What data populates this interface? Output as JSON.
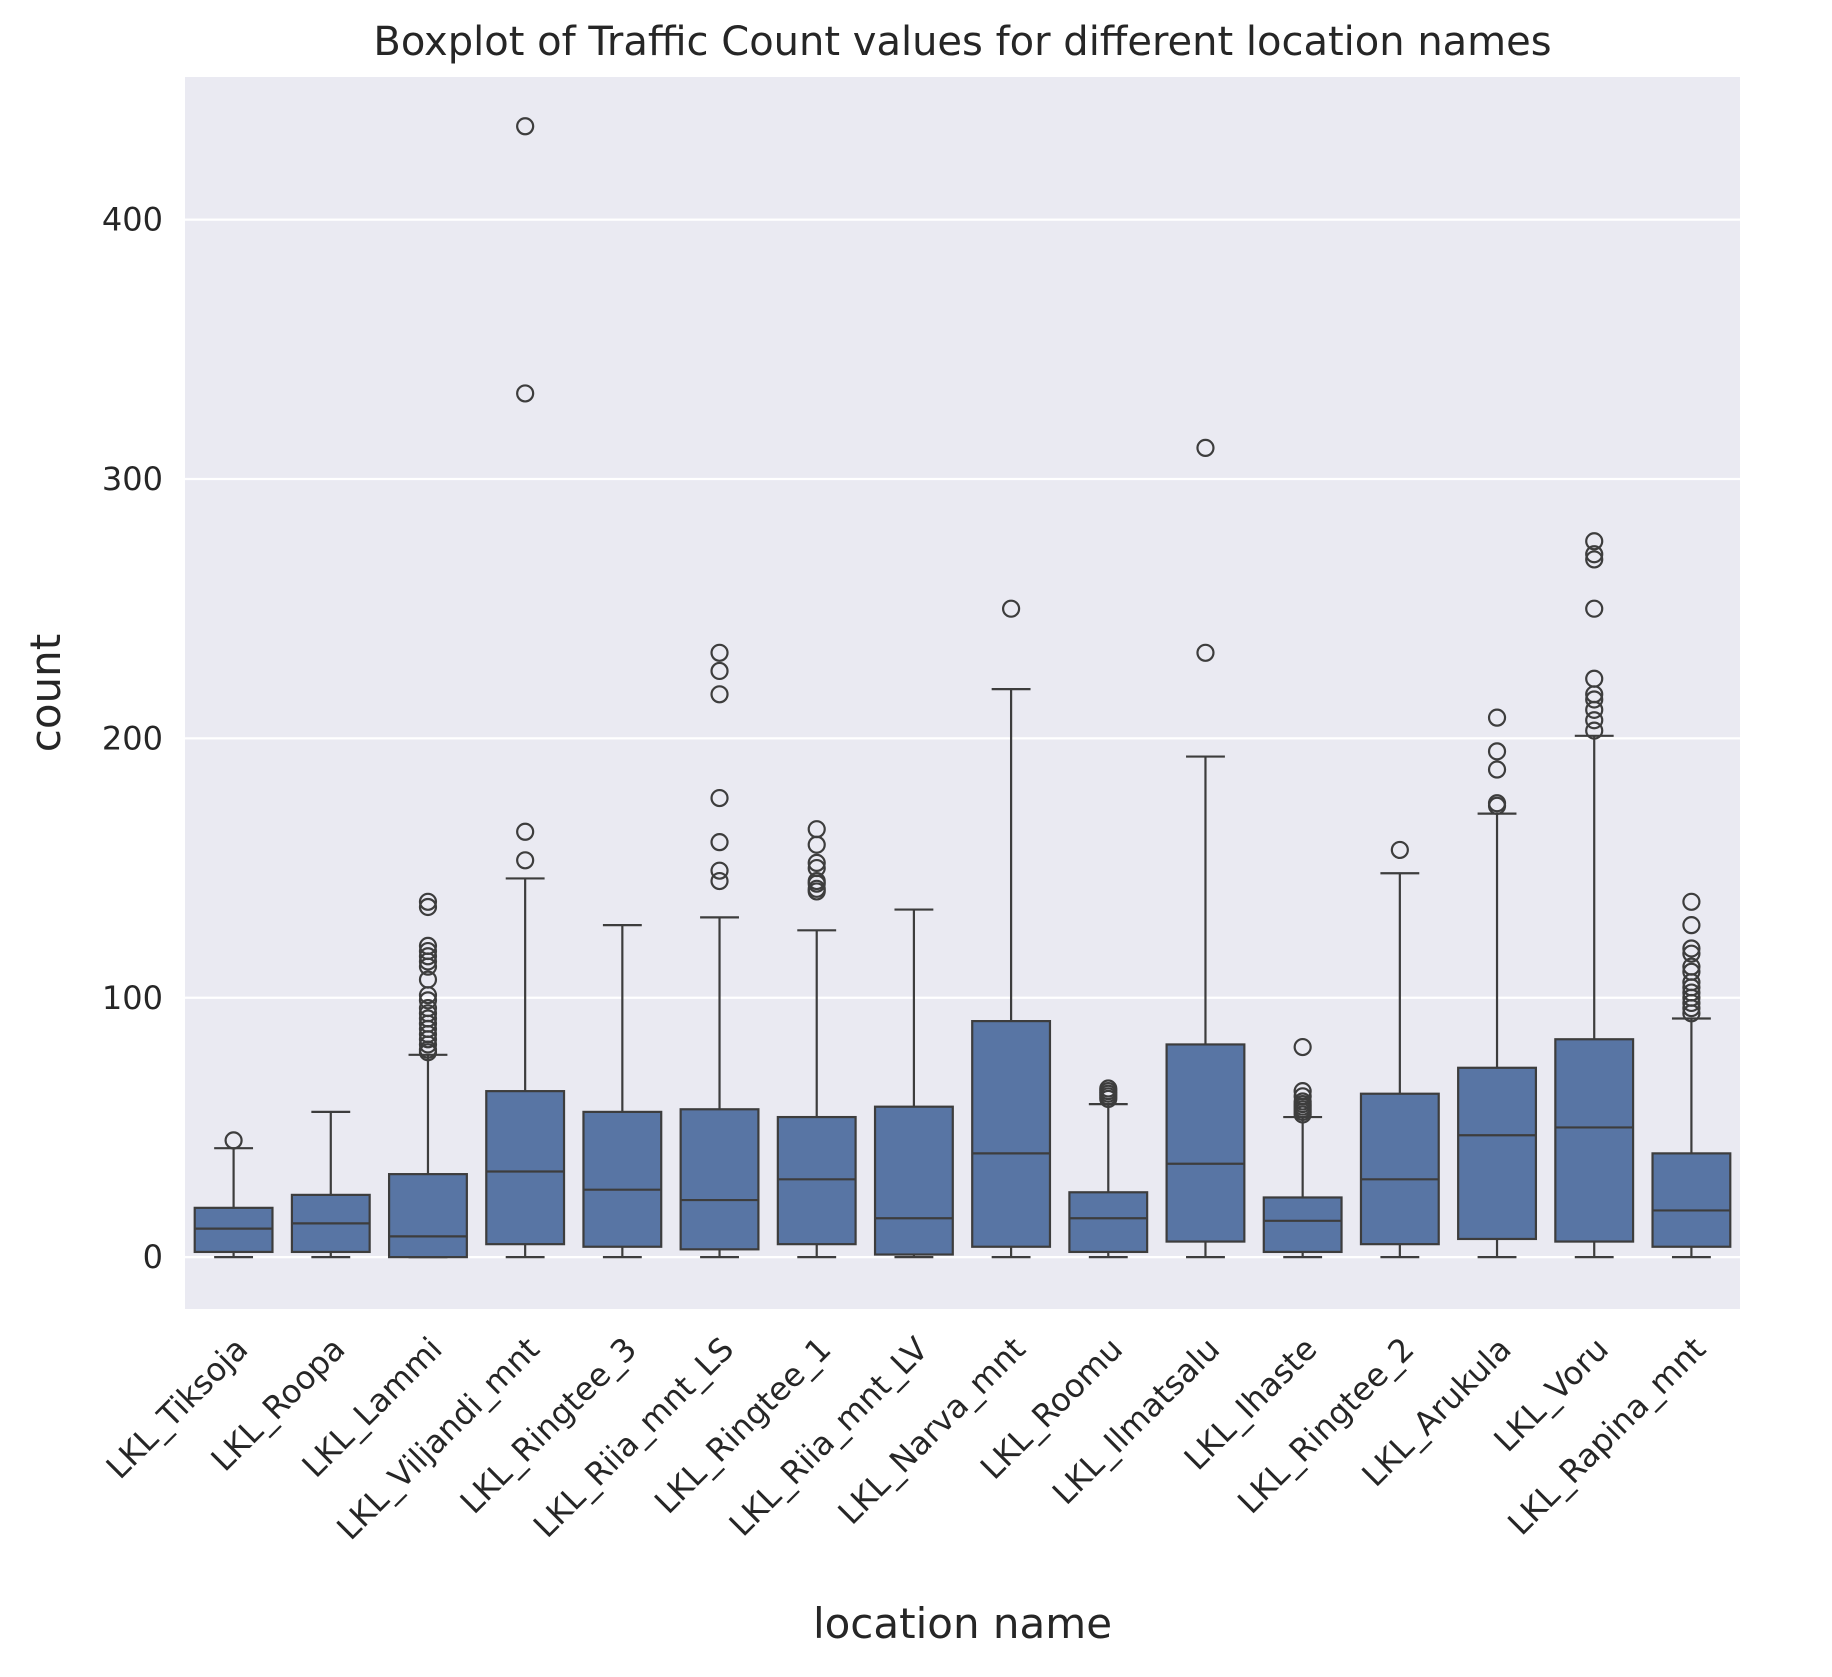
{
  "chart_data": {
    "type": "boxplot",
    "title": "Boxplot of Traffic Count values for different location names",
    "xlabel": "location name",
    "ylabel": "count",
    "ylim": [
      -20,
      455
    ],
    "yticks": [
      0,
      100,
      200,
      300,
      400
    ],
    "grid": true,
    "colors": {
      "box": "#5875a4",
      "line": "#3d3d3d",
      "plot_bg": "#eaeaf2",
      "grid": "#ffffff"
    },
    "categories": [
      "LKL_Tiksoja",
      "LKL_Roopa",
      "LKL_Lammi",
      "LKL_Viljandi_mnt",
      "LKL_Ringtee_3",
      "LKL_Riia_mnt_LS",
      "LKL_Ringtee_1",
      "LKL_Riia_mnt_LV",
      "LKL_Narva_mnt",
      "LKL_Roomu",
      "LKL_Ilmatsalu",
      "LKL_Ihaste",
      "LKL_Ringtee_2",
      "LKL_Arukula",
      "LKL_Voru",
      "LKL_Rapina_mnt"
    ],
    "boxes": [
      {
        "whislo": 0,
        "q1": 2,
        "med": 11,
        "q3": 19,
        "whishi": 42,
        "fliers": [
          45
        ]
      },
      {
        "whislo": 0,
        "q1": 2,
        "med": 13,
        "q3": 24,
        "whishi": 56,
        "fliers": []
      },
      {
        "whislo": 0,
        "q1": 0,
        "med": 8,
        "q3": 32,
        "whishi": 78,
        "fliers": [
          79,
          80,
          82,
          84,
          86,
          88,
          90,
          92,
          94,
          96,
          99,
          101,
          107,
          112,
          114,
          116,
          118,
          120,
          135,
          137
        ]
      },
      {
        "whislo": 0,
        "q1": 5,
        "med": 33,
        "q3": 64,
        "whishi": 146,
        "fliers": [
          153,
          164,
          333,
          436
        ]
      },
      {
        "whislo": 0,
        "q1": 4,
        "med": 26,
        "q3": 56,
        "whishi": 128,
        "fliers": []
      },
      {
        "whislo": 0,
        "q1": 3,
        "med": 22,
        "q3": 57,
        "whishi": 131,
        "fliers": [
          145,
          149,
          160,
          177,
          217,
          226,
          233
        ]
      },
      {
        "whislo": 0,
        "q1": 5,
        "med": 30,
        "q3": 54,
        "whishi": 126,
        "fliers": [
          141,
          142,
          144,
          145,
          150,
          152,
          159,
          165
        ]
      },
      {
        "whislo": 0,
        "q1": 1,
        "med": 15,
        "q3": 58,
        "whishi": 134,
        "fliers": []
      },
      {
        "whislo": 0,
        "q1": 4,
        "med": 40,
        "q3": 91,
        "whishi": 219,
        "fliers": [
          250
        ]
      },
      {
        "whislo": 0,
        "q1": 2,
        "med": 15,
        "q3": 25,
        "whishi": 59,
        "fliers": [
          61,
          62,
          63,
          64,
          65
        ]
      },
      {
        "whislo": 0,
        "q1": 6,
        "med": 36,
        "q3": 82,
        "whishi": 193,
        "fliers": [
          233,
          312
        ]
      },
      {
        "whislo": 0,
        "q1": 2,
        "med": 14,
        "q3": 23,
        "whishi": 54,
        "fliers": [
          55,
          56,
          57,
          58,
          59,
          60,
          62,
          64,
          81
        ]
      },
      {
        "whislo": 0,
        "q1": 5,
        "med": 30,
        "q3": 63,
        "whishi": 148,
        "fliers": [
          157
        ]
      },
      {
        "whislo": 0,
        "q1": 7,
        "med": 47,
        "q3": 73,
        "whishi": 171,
        "fliers": [
          174,
          175,
          188,
          195,
          208
        ]
      },
      {
        "whislo": 0,
        "q1": 6,
        "med": 50,
        "q3": 84,
        "whishi": 201,
        "fliers": [
          203,
          207,
          211,
          215,
          217,
          223,
          250,
          269,
          271,
          276
        ]
      },
      {
        "whislo": 0,
        "q1": 4,
        "med": 18,
        "q3": 40,
        "whishi": 92,
        "fliers": [
          94,
          96,
          98,
          100,
          102,
          104,
          106,
          110,
          112,
          117,
          119,
          128,
          137
        ]
      }
    ]
  }
}
